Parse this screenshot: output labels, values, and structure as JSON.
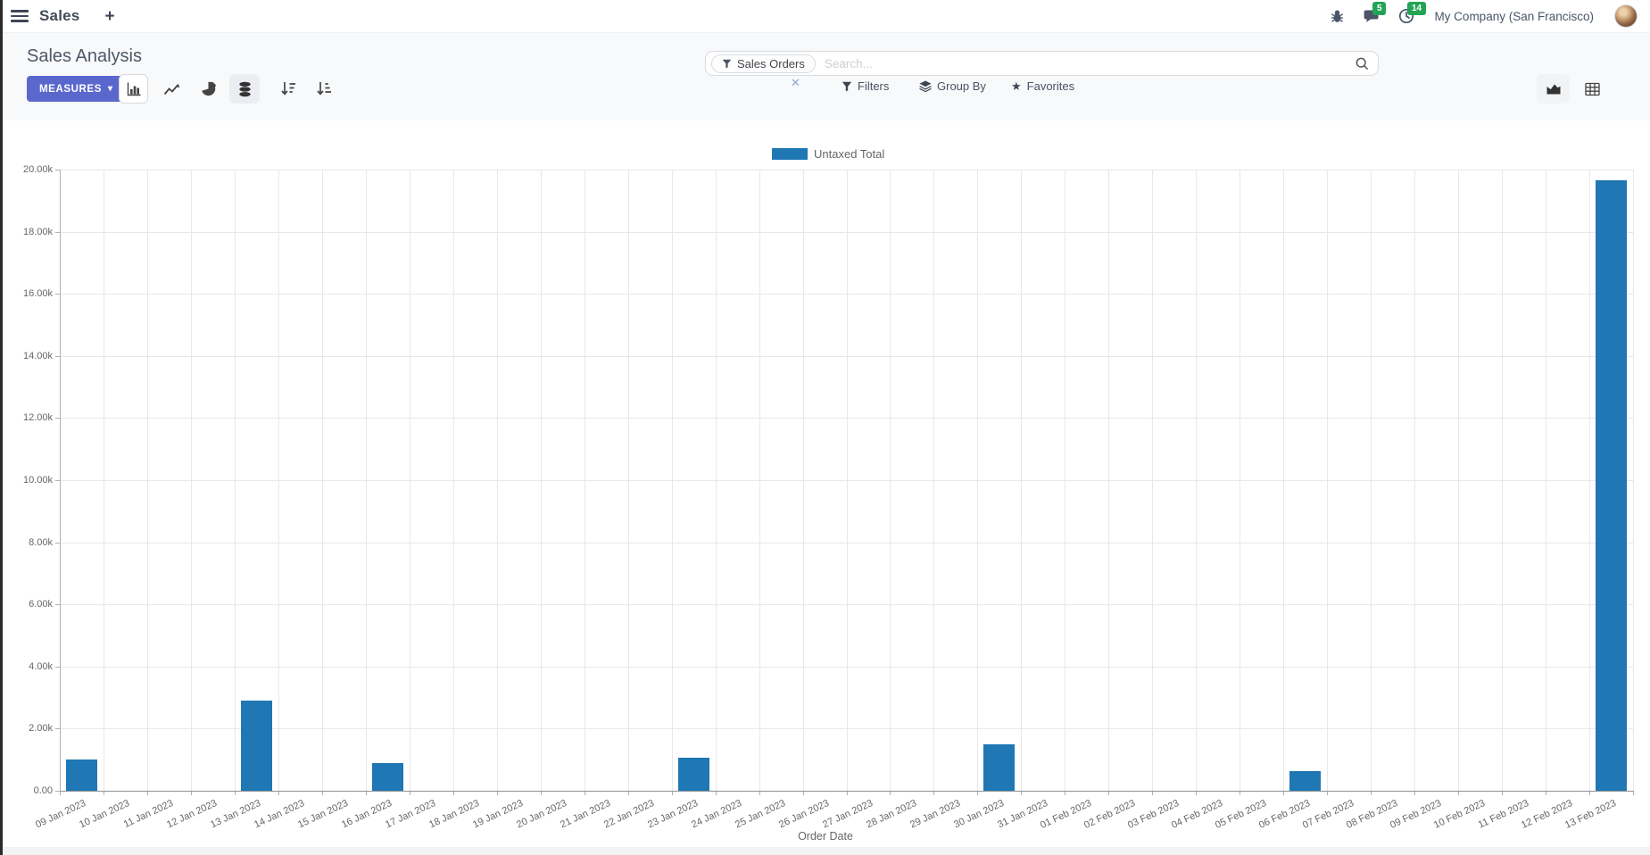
{
  "colors": {
    "accent": "#5a68ce",
    "badge": "#23a455",
    "bar": "#1f77b4"
  },
  "navbar": {
    "app_name": "Sales",
    "messages_badge": "5",
    "activities_badge": "14",
    "company": "My Company (San Francisco)"
  },
  "control_panel": {
    "title": "Sales Analysis",
    "measures_label": "MEASURES",
    "search": {
      "facet_label": "Sales Orders",
      "placeholder": "Search..."
    },
    "filters_label": "Filters",
    "group_by_label": "Group By",
    "favorites_label": "Favorites"
  },
  "chart_data": {
    "type": "bar",
    "title": "",
    "xlabel": "Order Date",
    "ylabel": "",
    "ylim": [
      0,
      20000
    ],
    "grid": true,
    "legend_position": "top-center",
    "y_ticks": [
      "0.00",
      "2.00k",
      "4.00k",
      "6.00k",
      "8.00k",
      "10.00k",
      "12.00k",
      "14.00k",
      "16.00k",
      "18.00k",
      "20.00k"
    ],
    "categories": [
      "09 Jan 2023",
      "10 Jan 2023",
      "11 Jan 2023",
      "12 Jan 2023",
      "13 Jan 2023",
      "14 Jan 2023",
      "15 Jan 2023",
      "16 Jan 2023",
      "17 Jan 2023",
      "18 Jan 2023",
      "19 Jan 2023",
      "20 Jan 2023",
      "21 Jan 2023",
      "22 Jan 2023",
      "23 Jan 2023",
      "24 Jan 2023",
      "25 Jan 2023",
      "26 Jan 2023",
      "27 Jan 2023",
      "28 Jan 2023",
      "29 Jan 2023",
      "30 Jan 2023",
      "31 Jan 2023",
      "01 Feb 2023",
      "02 Feb 2023",
      "03 Feb 2023",
      "04 Feb 2023",
      "05 Feb 2023",
      "06 Feb 2023",
      "07 Feb 2023",
      "08 Feb 2023",
      "09 Feb 2023",
      "10 Feb 2023",
      "11 Feb 2023",
      "12 Feb 2023",
      "13 Feb 2023"
    ],
    "series": [
      {
        "name": "Untaxed Total",
        "color": "#1f77b4",
        "values": [
          1000,
          0,
          0,
          0,
          2900,
          0,
          0,
          900,
          0,
          0,
          0,
          0,
          0,
          0,
          1050,
          0,
          0,
          0,
          0,
          0,
          0,
          1500,
          0,
          0,
          0,
          0,
          0,
          0,
          620,
          0,
          0,
          0,
          0,
          0,
          0,
          19650
        ]
      }
    ]
  }
}
